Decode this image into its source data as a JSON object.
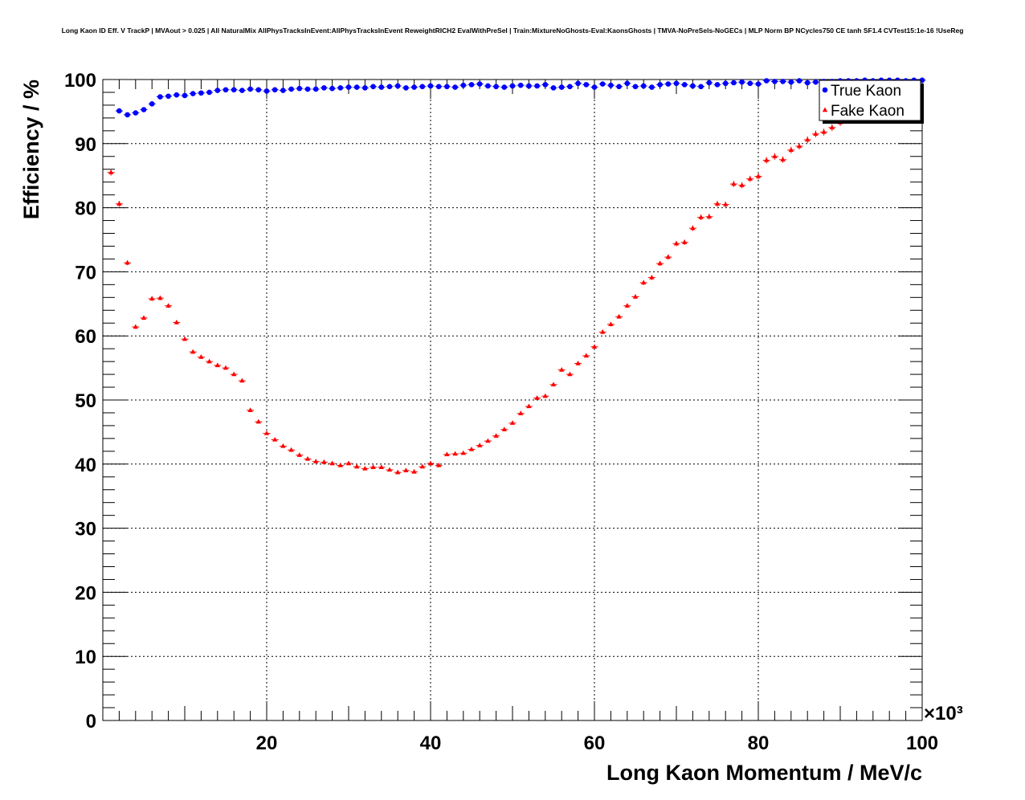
{
  "title": "Long Kaon ID Eff. V TrackP | MVAout > 0.025 | All NaturalMix AllPhysTracksInEvent:AllPhysTracksInEvent ReweightRICH2 EvalWithPreSel | Train:MixtureNoGhosts-Eval:KaonsGhosts | TMVA-NoPreSels-NoGECs | MLP Norm BP NCycles750 CE tanh SF1.4 CVTest15:1e-16 !UseReg",
  "chart_data": {
    "type": "scatter",
    "title": "Long Kaon ID Eff. V TrackP | MVAout > 0.025 | All NaturalMix AllPhysTracksInEvent:AllPhysTracksInEvent ReweightRICH2 EvalWithPreSel | Train:MixtureNoGhosts-Eval:KaonsGhosts | TMVA-NoPreSels-NoGECs | MLP Norm BP NCycles750 CE tanh SF1.4 CVTest15:1e-16 !UseReg",
    "xlabel": "Long Kaon Momentum / MeV/c",
    "ylabel": "Efficiency / %",
    "x_multiplier": "×10³",
    "xlim": [
      0,
      100
    ],
    "ylim": [
      0,
      100
    ],
    "x_ticks": [
      20,
      40,
      60,
      80,
      100
    ],
    "y_ticks": [
      0,
      10,
      20,
      30,
      40,
      50,
      60,
      70,
      80,
      90,
      100
    ],
    "grid": true,
    "legend_position": "top-right",
    "series": [
      {
        "name": "True Kaon",
        "color": "#0000ff",
        "marker": "circle",
        "x": [
          2,
          3,
          4,
          5,
          6,
          7,
          8,
          9,
          10,
          11,
          12,
          13,
          14,
          15,
          16,
          17,
          18,
          19,
          20,
          21,
          22,
          23,
          24,
          25,
          26,
          27,
          28,
          29,
          30,
          31,
          32,
          33,
          34,
          35,
          36,
          37,
          38,
          39,
          40,
          41,
          42,
          43,
          44,
          45,
          46,
          47,
          48,
          49,
          50,
          51,
          52,
          53,
          54,
          55,
          56,
          57,
          58,
          59,
          60,
          61,
          62,
          63,
          64,
          65,
          66,
          67,
          68,
          69,
          70,
          71,
          72,
          73,
          74,
          75,
          76,
          77,
          78,
          79,
          80,
          81,
          82,
          83,
          84,
          85,
          86,
          87,
          88,
          89,
          90,
          91,
          92,
          93,
          94,
          95,
          96,
          97,
          98,
          99,
          100
        ],
        "values": [
          95.1,
          94.5,
          94.8,
          95.3,
          96.2,
          97.3,
          97.4,
          97.6,
          97.5,
          97.8,
          97.9,
          98.0,
          98.3,
          98.4,
          98.4,
          98.3,
          98.5,
          98.4,
          98.2,
          98.4,
          98.3,
          98.5,
          98.6,
          98.5,
          98.5,
          98.7,
          98.6,
          98.7,
          98.8,
          98.8,
          98.7,
          98.9,
          98.8,
          98.9,
          99.0,
          98.7,
          98.8,
          98.9,
          99.0,
          98.9,
          98.9,
          98.8,
          99.1,
          99.2,
          99.3,
          99.0,
          98.9,
          98.8,
          99.0,
          99.1,
          99.0,
          99.0,
          99.2,
          98.7,
          98.8,
          98.9,
          99.4,
          99.2,
          98.8,
          99.3,
          99.1,
          98.9,
          99.4,
          98.9,
          99.0,
          98.8,
          99.2,
          99.3,
          99.4,
          99.2,
          99.0,
          98.9,
          99.5,
          99.2,
          99.4,
          99.5,
          99.6,
          99.4,
          99.3,
          99.8,
          99.7,
          99.7,
          99.6,
          99.8,
          99.5,
          99.6,
          99.7,
          99.7,
          99.8,
          99.8,
          99.8,
          99.9,
          99.8,
          99.9,
          99.9,
          99.9,
          99.8,
          99.9,
          99.9
        ]
      },
      {
        "name": "Fake Kaon",
        "color": "#ff0000",
        "marker": "triangle",
        "x": [
          1,
          2,
          3,
          4,
          5,
          6,
          7,
          8,
          9,
          10,
          11,
          12,
          13,
          14,
          15,
          16,
          17,
          18,
          19,
          20,
          21,
          22,
          23,
          24,
          25,
          26,
          27,
          28,
          29,
          30,
          31,
          32,
          33,
          34,
          35,
          36,
          37,
          38,
          39,
          40,
          41,
          42,
          43,
          44,
          45,
          46,
          47,
          48,
          49,
          50,
          51,
          52,
          53,
          54,
          55,
          56,
          57,
          58,
          59,
          60,
          61,
          62,
          63,
          64,
          65,
          66,
          67,
          68,
          69,
          70,
          71,
          72,
          73,
          74,
          75,
          76,
          77,
          78,
          79,
          80,
          81,
          82,
          83,
          84,
          85,
          86,
          87,
          88,
          89,
          90
        ],
        "values": [
          85.5,
          80.6,
          71.4,
          61.4,
          62.8,
          65.8,
          65.9,
          64.7,
          62.1,
          59.5,
          57.5,
          56.7,
          56.0,
          55.4,
          55.0,
          54.0,
          53.0,
          48.4,
          46.6,
          44.8,
          43.8,
          42.8,
          42.2,
          41.4,
          40.8,
          40.4,
          40.3,
          40.1,
          39.8,
          40.1,
          39.6,
          39.3,
          39.5,
          39.5,
          39.1,
          38.7,
          39.0,
          38.8,
          39.6,
          40.1,
          39.8,
          41.5,
          41.6,
          41.7,
          42.3,
          42.9,
          43.6,
          44.4,
          45.4,
          46.4,
          47.9,
          49.0,
          50.3,
          50.6,
          52.4,
          54.7,
          54.0,
          55.7,
          56.9,
          58.3,
          60.6,
          61.8,
          63.0,
          64.7,
          66.1,
          68.3,
          69.1,
          71.3,
          72.3,
          74.4,
          74.6,
          76.8,
          78.5,
          78.6,
          80.6,
          80.5,
          83.7,
          83.5,
          84.5,
          84.9,
          87.4,
          88.0,
          87.5,
          89.0,
          89.6,
          90.6,
          91.5,
          91.8,
          92.5,
          93.3
        ]
      }
    ]
  }
}
